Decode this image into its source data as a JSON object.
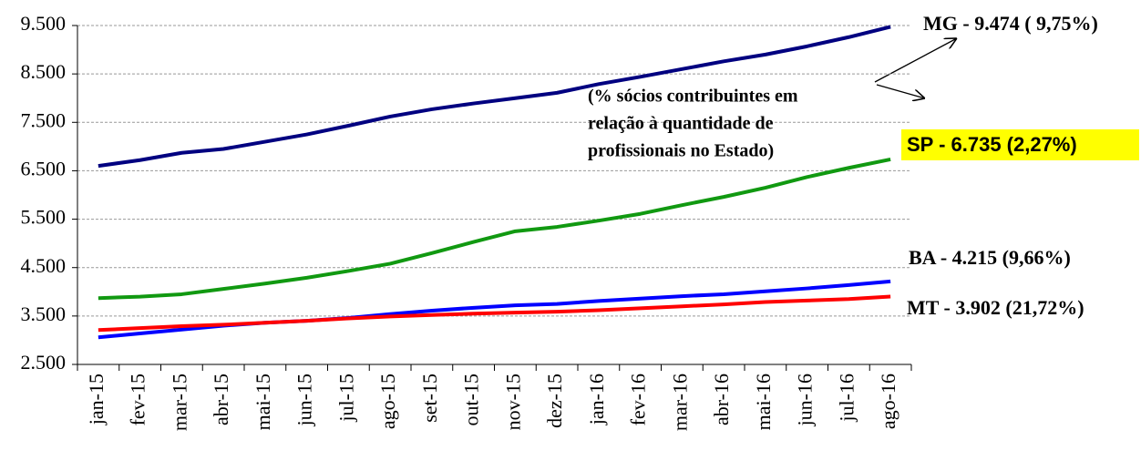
{
  "chart_data": {
    "type": "line",
    "categories": [
      "jan-15",
      "fev-15",
      "mar-15",
      "abr-15",
      "mai-15",
      "jun-15",
      "jul-15",
      "ago-15",
      "set-15",
      "out-15",
      "nov-15",
      "dez-15",
      "jan-16",
      "fev-16",
      "mar-16",
      "abr-16",
      "mai-16",
      "jun-16",
      "jul-16",
      "ago-16"
    ],
    "series": [
      {
        "name": "MG - 9.474 ( 9,75%)",
        "color": "#000080",
        "values": [
          6600,
          6720,
          6870,
          6950,
          7100,
          7250,
          7430,
          7620,
          7770,
          7890,
          8000,
          8110,
          8290,
          8440,
          8600,
          8760,
          8900,
          9070,
          9260,
          9474
        ]
      },
      {
        "name": "SP - 6.735 (2,27%)",
        "color": "#119911",
        "label_highlight": "#ffff00",
        "values": [
          3870,
          3900,
          3950,
          4060,
          4170,
          4290,
          4430,
          4580,
          4800,
          5030,
          5250,
          5340,
          5470,
          5610,
          5790,
          5960,
          6150,
          6370,
          6560,
          6735
        ]
      },
      {
        "name": "BA - 4.215 (9,66%)",
        "color": "#0000ff",
        "values": [
          3060,
          3140,
          3220,
          3300,
          3360,
          3400,
          3460,
          3540,
          3610,
          3670,
          3720,
          3750,
          3810,
          3860,
          3910,
          3950,
          4010,
          4070,
          4140,
          4215
        ]
      },
      {
        "name": "MT - 3.902 (21,72%)",
        "color": "#ff0000",
        "values": [
          3210,
          3250,
          3290,
          3320,
          3360,
          3400,
          3450,
          3490,
          3520,
          3550,
          3570,
          3590,
          3620,
          3660,
          3700,
          3740,
          3790,
          3820,
          3850,
          3902
        ]
      }
    ],
    "annotation": [
      "(% sócios contribuintes em",
      "relação à quantidade de",
      "profissionais no Estado)"
    ],
    "ylim": [
      2500,
      9500
    ],
    "yticks": [
      {
        "value": 2500,
        "label": "2.500"
      },
      {
        "value": 3500,
        "label": "3.500"
      },
      {
        "value": 4500,
        "label": "4.500"
      },
      {
        "value": 5500,
        "label": "5.500"
      },
      {
        "value": 6500,
        "label": "6.500"
      },
      {
        "value": 7500,
        "label": "7.500"
      },
      {
        "value": 8500,
        "label": "8.500"
      },
      {
        "value": 9500,
        "label": "9.500"
      }
    ],
    "grid": true
  }
}
